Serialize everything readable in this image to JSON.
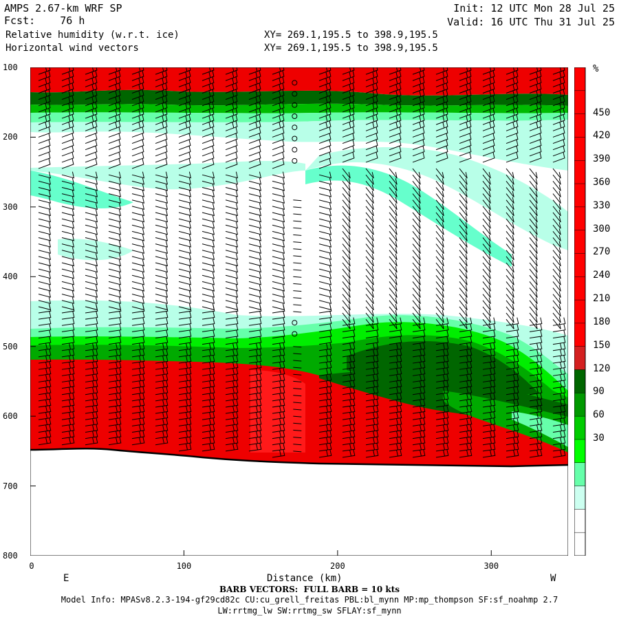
{
  "header": {
    "model": "AMPS 2.67-km WRF SP",
    "fcst_label": "Fcst:",
    "fcst_value": "76 h",
    "field1": "Relative humidity (w.r.t. ice)",
    "field2": "Horizontal wind vectors",
    "init": "Init: 12 UTC Mon 28 Jul 25",
    "valid": "Valid: 16 UTC Thu 31 Jul 25",
    "xy1": "XY= 269.1,195.5 to 398.9,195.5",
    "xy2": "XY= 269.1,195.5 to 398.9,195.5"
  },
  "colorbar": {
    "unit": "%",
    "labels": [
      "450",
      "420",
      "390",
      "360",
      "330",
      "300",
      "270",
      "240",
      "210",
      "180",
      "150",
      "120",
      "90",
      "60",
      "30"
    ],
    "colors": [
      "#ff0000",
      "#ff0000",
      "#ff0000",
      "#ff0000",
      "#ff0000",
      "#ff0000",
      "#ff0000",
      "#ff0000",
      "#ff0000",
      "#ff0000",
      "#ff0000",
      "#ff0000",
      "#d42020",
      "#006600",
      "#009900",
      "#00cc00",
      "#00ff00",
      "#66ffaa",
      "#ccfff0",
      "#ffffff",
      "#ffffff"
    ]
  },
  "footer": {
    "barb_note": "BARB VECTORS:  FULL BARB = 10 kts",
    "model_info": "Model Info: MPASv8.2.3-194-gf29cd82c CU:cu_grell_freitas PBL:bl_mynn MP:mp_thompson SF:sf_noahmp 2.7",
    "model_info2": "LW:rrtmg_lw SW:rrtmg_sw SFLAY:sf_mynn"
  },
  "chart_data": {
    "type": "heatmap",
    "title": "Relative humidity (w.r.t. ice)",
    "xlabel": "Distance (km)",
    "ylabel": "",
    "x_ticks": [
      "0",
      "100",
      "200",
      "300"
    ],
    "y_ticks": [
      "100",
      "200",
      "300",
      "400",
      "500",
      "600",
      "700",
      "800"
    ],
    "xlim": [
      0,
      350
    ],
    "ylim": [
      800,
      100
    ],
    "direction_labels": {
      "left": "E",
      "right": "W"
    },
    "terrain_surface_hpa": [
      [
        0,
        651
      ],
      [
        50,
        650
      ],
      [
        100,
        655
      ],
      [
        150,
        663
      ],
      [
        200,
        668
      ],
      [
        250,
        670
      ],
      [
        300,
        671
      ],
      [
        350,
        672
      ]
    ],
    "rh_layers": [
      {
        "name": "upper-red",
        "top": 100,
        "bottom": 140,
        "value": ">120"
      },
      {
        "name": "upper-green",
        "top": 135,
        "bottom": 165,
        "value": "60-100"
      },
      {
        "name": "mid-low-green",
        "top": 455,
        "bottom": 525,
        "value": "40-100"
      },
      {
        "name": "lower-red",
        "top": 525,
        "bottom": 655,
        "value": ">120"
      }
    ]
  }
}
